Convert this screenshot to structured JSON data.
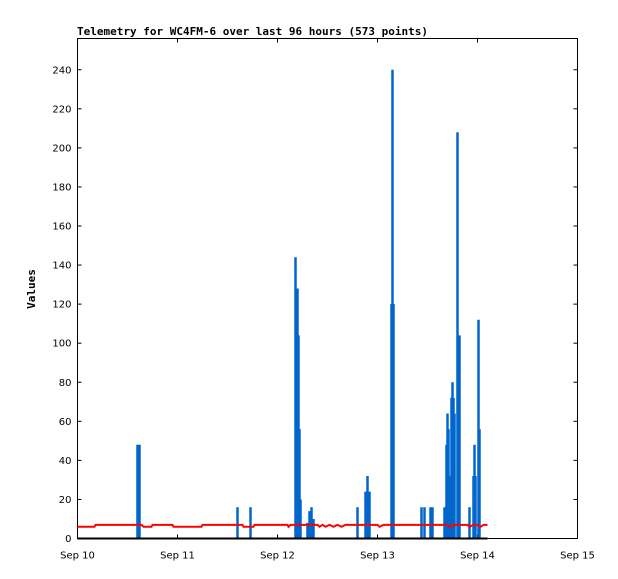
{
  "chart_data": {
    "type": "line",
    "title": "Telemetry for WC4FM-6 over last 96 hours (573 points)",
    "ylabel": "Values",
    "xlabel": "",
    "ylim": [
      0,
      256
    ],
    "xlim": [
      0,
      5
    ],
    "x_ticks": [
      {
        "x": 0,
        "label": "Sep 10"
      },
      {
        "x": 1,
        "label": "Sep 11"
      },
      {
        "x": 2,
        "label": "Sep 12"
      },
      {
        "x": 3,
        "label": "Sep 13"
      },
      {
        "x": 4,
        "label": "Sep 14"
      },
      {
        "x": 5,
        "label": "Sep 15"
      }
    ],
    "y_ticks": [
      0,
      20,
      40,
      60,
      80,
      100,
      120,
      140,
      160,
      180,
      200,
      220,
      240
    ],
    "grid": false,
    "series": [
      {
        "color": "#0066cc",
        "style": "spikes",
        "points": [
          [
            0.6,
            48
          ],
          [
            0.62,
            48
          ],
          [
            1.6,
            16
          ],
          [
            1.73,
            16
          ],
          [
            2.18,
            144
          ],
          [
            2.19,
            72
          ],
          [
            2.2,
            128
          ],
          [
            2.21,
            104
          ],
          [
            2.22,
            56
          ],
          [
            2.23,
            20
          ],
          [
            2.3,
            8
          ],
          [
            2.32,
            14
          ],
          [
            2.34,
            16
          ],
          [
            2.36,
            10
          ],
          [
            2.8,
            16
          ],
          [
            2.88,
            24
          ],
          [
            2.9,
            32
          ],
          [
            2.92,
            24
          ],
          [
            3.14,
            120
          ],
          [
            3.15,
            240
          ],
          [
            3.16,
            120
          ],
          [
            3.44,
            16
          ],
          [
            3.47,
            16
          ],
          [
            3.53,
            16
          ],
          [
            3.55,
            16
          ],
          [
            3.67,
            16
          ],
          [
            3.69,
            48
          ],
          [
            3.7,
            64
          ],
          [
            3.71,
            56
          ],
          [
            3.73,
            32
          ],
          [
            3.74,
            72
          ],
          [
            3.75,
            80
          ],
          [
            3.76,
            72
          ],
          [
            3.77,
            64
          ],
          [
            3.8,
            208
          ],
          [
            3.82,
            104
          ],
          [
            3.92,
            16
          ],
          [
            3.96,
            32
          ],
          [
            3.97,
            48
          ],
          [
            3.98,
            32
          ],
          [
            4.01,
            112
          ],
          [
            4.02,
            56
          ]
        ]
      },
      {
        "color": "#ff0000",
        "style": "line",
        "points": [
          [
            0.0,
            6
          ],
          [
            0.17,
            6
          ],
          [
            0.18,
            7
          ],
          [
            0.6,
            7
          ],
          [
            0.64,
            7
          ],
          [
            0.66,
            6
          ],
          [
            0.74,
            6
          ],
          [
            0.75,
            7
          ],
          [
            0.95,
            7
          ],
          [
            0.96,
            6
          ],
          [
            1.24,
            6
          ],
          [
            1.25,
            7
          ],
          [
            1.65,
            7
          ],
          [
            1.66,
            6
          ],
          [
            1.76,
            6
          ],
          [
            1.77,
            7
          ],
          [
            2.1,
            7
          ],
          [
            2.11,
            6
          ],
          [
            2.13,
            7
          ],
          [
            2.4,
            7
          ],
          [
            2.42,
            6
          ],
          [
            2.45,
            7
          ],
          [
            2.48,
            6
          ],
          [
            2.52,
            7
          ],
          [
            2.56,
            6
          ],
          [
            2.6,
            7
          ],
          [
            2.64,
            6
          ],
          [
            2.68,
            7
          ],
          [
            3.0,
            7
          ],
          [
            3.02,
            6
          ],
          [
            3.06,
            7
          ],
          [
            3.7,
            7
          ],
          [
            3.72,
            6
          ],
          [
            3.76,
            7
          ],
          [
            3.9,
            7
          ],
          [
            3.92,
            6
          ],
          [
            3.96,
            7
          ],
          [
            4.0,
            7
          ],
          [
            4.03,
            6
          ],
          [
            4.06,
            7
          ],
          [
            4.1,
            7
          ]
        ]
      },
      {
        "color": "#000000",
        "style": "line",
        "points": [
          [
            0.0,
            0
          ],
          [
            4.1,
            0
          ]
        ]
      }
    ]
  }
}
